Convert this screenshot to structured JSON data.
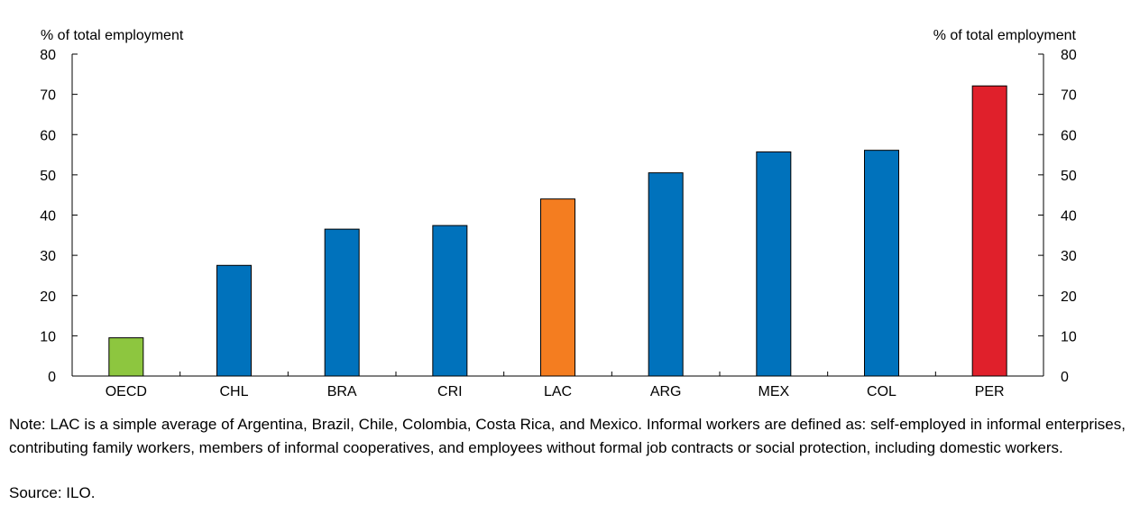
{
  "chart_data": {
    "type": "bar",
    "title": "",
    "ylabel_left": "% of total employment",
    "ylabel_right": "% of total employment",
    "ylim": [
      0,
      80
    ],
    "yticks": [
      "0",
      "10",
      "20",
      "30",
      "40",
      "50",
      "60",
      "70",
      "80"
    ],
    "categories": [
      "OECD",
      "CHL",
      "BRA",
      "CRI",
      "LAC",
      "ARG",
      "MEX",
      "COL",
      "PER"
    ],
    "values": [
      9.5,
      27.5,
      36.5,
      37.4,
      44.0,
      50.5,
      55.7,
      56.1,
      72.1
    ],
    "colors": [
      "#8dc63f",
      "#0072bc",
      "#0072bc",
      "#0072bc",
      "#f47d20",
      "#0072bc",
      "#0072bc",
      "#0072bc",
      "#e0202b"
    ],
    "grid": false,
    "legend": "none"
  },
  "note": "Note: LAC is a simple average of Argentina, Brazil, Chile, Colombia, Costa Rica, and Mexico. Informal workers are defined as: self-employed in informal enterprises, contributing family workers, members of informal cooperatives, and employees without formal job contracts or social protection, including domestic workers.",
  "source": "Source: ILO."
}
